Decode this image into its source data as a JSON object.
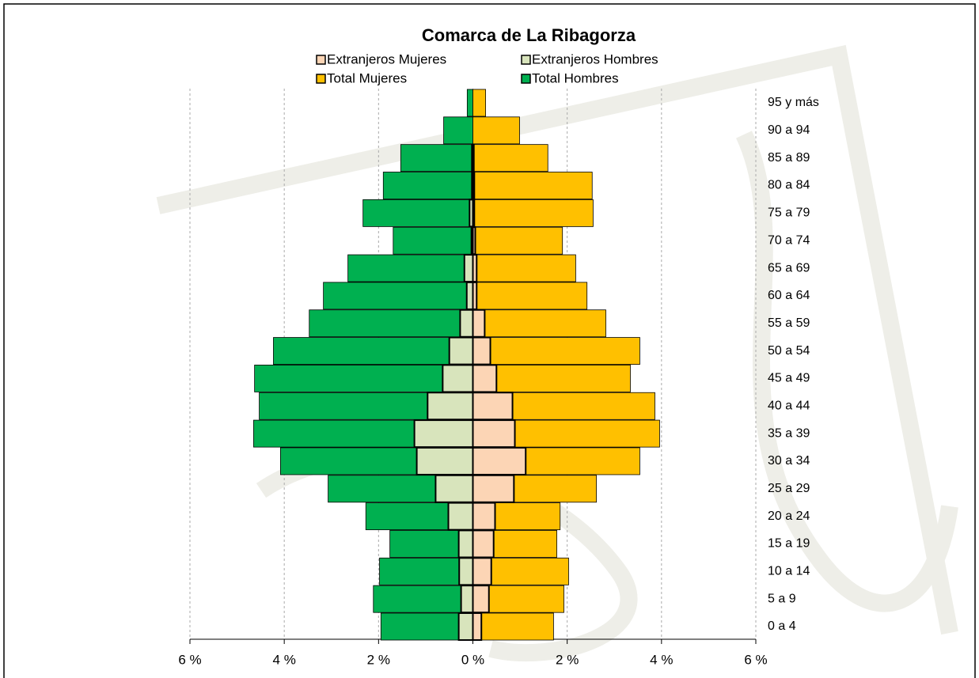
{
  "chart_data": {
    "type": "pyramid",
    "title": "Comarca de La Ribagorza",
    "categories": [
      "0 a 4",
      "5 a 9",
      "10 a 14",
      "15 a 19",
      "20 a 24",
      "25 a 29",
      "30 a 34",
      "35 a 39",
      "40 a 44",
      "45 a 49",
      "50 a 54",
      "55 a 59",
      "60 a 64",
      "65 a 69",
      "70 a 74",
      "75 a 79",
      "80 a 84",
      "85 a 89",
      "90 a 94",
      "95 y más"
    ],
    "series": [
      {
        "name": "Extranjeros Mujeres",
        "color": "#fcd5b5",
        "values": [
          0.18,
          0.34,
          0.39,
          0.44,
          0.47,
          0.87,
          1.12,
          0.89,
          0.84,
          0.5,
          0.37,
          0.25,
          0.08,
          0.08,
          0.05,
          0.03,
          0.03,
          0.02,
          0,
          0
        ]
      },
      {
        "name": "Extranjeros Hombres",
        "color": "#d8e4bc",
        "values": [
          -0.3,
          -0.25,
          -0.29,
          -0.3,
          -0.52,
          -0.79,
          -1.19,
          -1.24,
          -0.96,
          -0.64,
          -0.5,
          -0.27,
          -0.13,
          -0.18,
          -0.03,
          -0.07,
          -0.02,
          -0.02,
          0,
          0
        ]
      },
      {
        "name": "Total Mujeres",
        "color": "#ffc000",
        "values": [
          1.71,
          1.93,
          2.03,
          1.78,
          1.85,
          2.62,
          3.54,
          3.96,
          3.86,
          3.34,
          3.54,
          2.82,
          2.42,
          2.18,
          1.9,
          2.55,
          2.53,
          1.59,
          0.99,
          0.27
        ]
      },
      {
        "name": "Total Hombres",
        "color": "#00b050",
        "values": [
          -1.95,
          -2.11,
          -1.98,
          -1.76,
          -2.27,
          -3.07,
          -4.08,
          -4.65,
          -4.53,
          -4.63,
          -4.23,
          -3.47,
          -3.17,
          -2.65,
          -1.69,
          -2.33,
          -1.9,
          -1.53,
          -0.62,
          -0.12
        ]
      }
    ],
    "xlim": [
      -6,
      6
    ],
    "xticks": [
      {
        "value": -6,
        "label": "6 %"
      },
      {
        "value": -4,
        "label": "4 %"
      },
      {
        "value": -2,
        "label": "2 %"
      },
      {
        "value": 0,
        "label": "0 %"
      },
      {
        "value": 2,
        "label": "2 %"
      },
      {
        "value": 4,
        "label": "4 %"
      },
      {
        "value": 6,
        "label": "6 %"
      }
    ],
    "grid": true
  }
}
